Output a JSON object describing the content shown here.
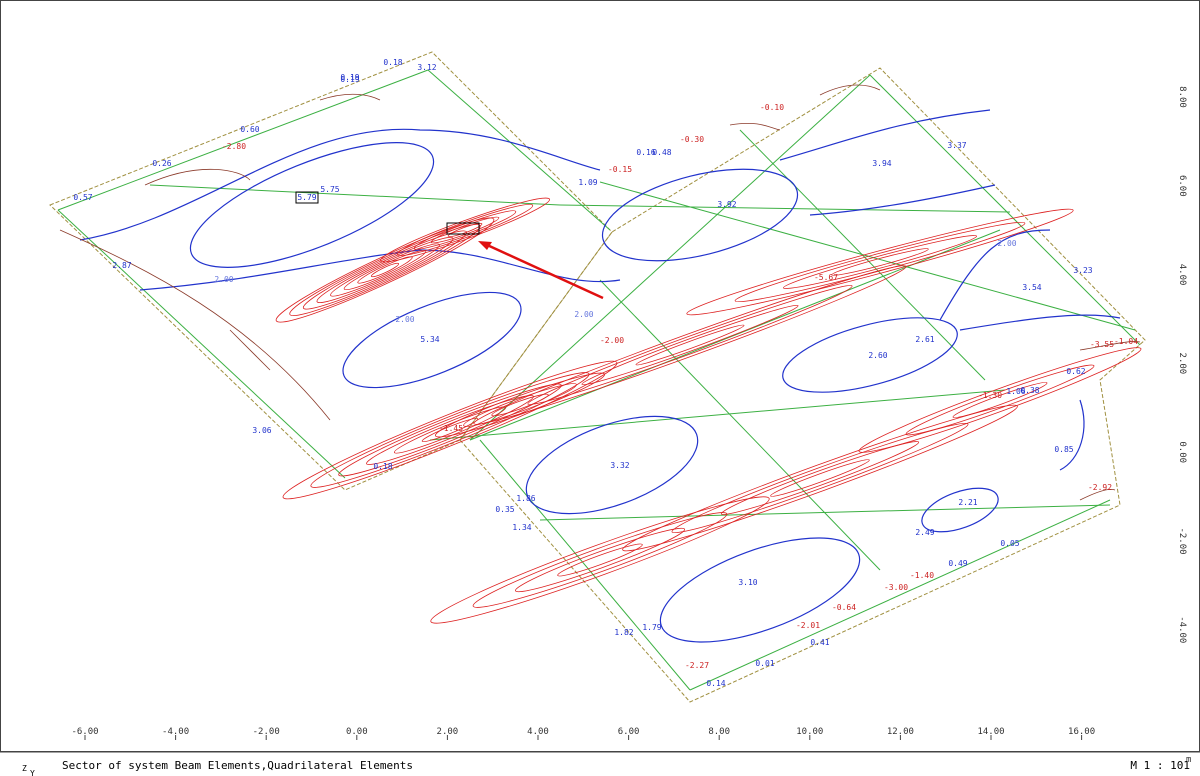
{
  "plot": {
    "x_axis": {
      "ticks": [
        "-6.00",
        "-4.00",
        "-2.00",
        "0.00",
        "2.00",
        "4.00",
        "6.00",
        "8.00",
        "10.00",
        "12.00",
        "14.00",
        "16.00"
      ],
      "unit": "m"
    },
    "y_axis": {
      "ticks": [
        "8.00",
        "6.00",
        "4.00",
        "2.00",
        "0.00",
        "-2.00",
        "-4.00"
      ]
    },
    "max_label": "5.79",
    "labels": [
      "5.75",
      "5.34",
      "2.87",
      "3.06",
      "0.57",
      "0.18",
      "0.19",
      "0.60",
      "0.26",
      "3.12",
      "3.92",
      "3.94",
      "3.37",
      "3.54",
      "3.23",
      "2.60",
      "2.61",
      "3.32",
      "3.10",
      "2.21",
      "0.85",
      "1.06",
      "0.62",
      "0.38",
      "1.86",
      "0.35",
      "1.34",
      "1.82",
      "1.79",
      "0.01",
      "0.41",
      "0.14",
      "0.18",
      "1.09",
      "0.48",
      "2.00",
      "2.00",
      "2.00",
      "2.00",
      "0.16",
      "0.19",
      "2.49",
      "0.49",
      "0.05"
    ],
    "red_labels": [
      "-0.10",
      "-0.30",
      "-0.15",
      "-5.67",
      "-1.04",
      "-1.30",
      "-1.40",
      "-3.00",
      "-0.64",
      "-2.01",
      "-2.27",
      "-2.92",
      "-1.45",
      "-2.00",
      "-3.55",
      "-2.80"
    ]
  },
  "footer": {
    "axis_z": "Z",
    "axis_y": "Y",
    "description": "Sector of system Beam Elements,Quadrilateral Elements",
    "scale": "M 1 : 101"
  }
}
